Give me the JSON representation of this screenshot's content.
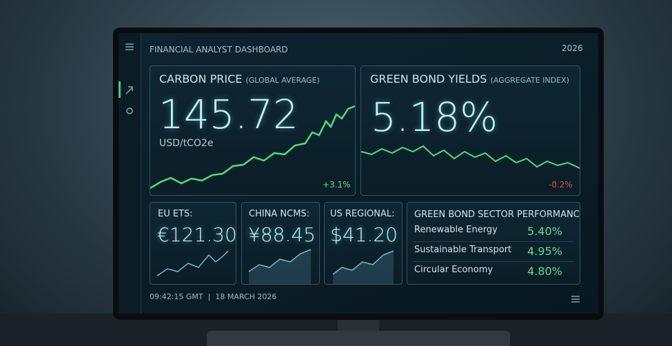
{
  "header": {
    "title": "FINANCIAL ANALYST DASHBOARD",
    "year": "2026"
  },
  "carbon": {
    "title": "CARBON PRICE",
    "subtitle": "(GLOBAL AVERAGE)",
    "value": "145.72",
    "unit": "USD/tCO2e",
    "change": "+3.1%"
  },
  "bonds": {
    "title": "GREEN BOND YIELDS",
    "subtitle": "(AGGREGATE INDEX)",
    "value": "5.18%",
    "change": "-0.2%"
  },
  "markets": [
    {
      "label": "EU ETS:",
      "value": "€121.30"
    },
    {
      "label": "CHINA NCMS:",
      "value": "¥88.45"
    },
    {
      "label": "US REGIONAL:",
      "value": "$41.20"
    }
  ],
  "sectors": {
    "title": "GREEN BOND SECTOR PERFORMANCE",
    "rows": [
      {
        "name": "Renewable Energy",
        "value": "5.40%"
      },
      {
        "name": "Sustainable Transport",
        "value": "4.95%"
      },
      {
        "name": "Circular Economy",
        "value": "4.80%"
      }
    ]
  },
  "footer": {
    "time": "09:42:15 GMT",
    "date": "18 MARCH 2026"
  }
}
